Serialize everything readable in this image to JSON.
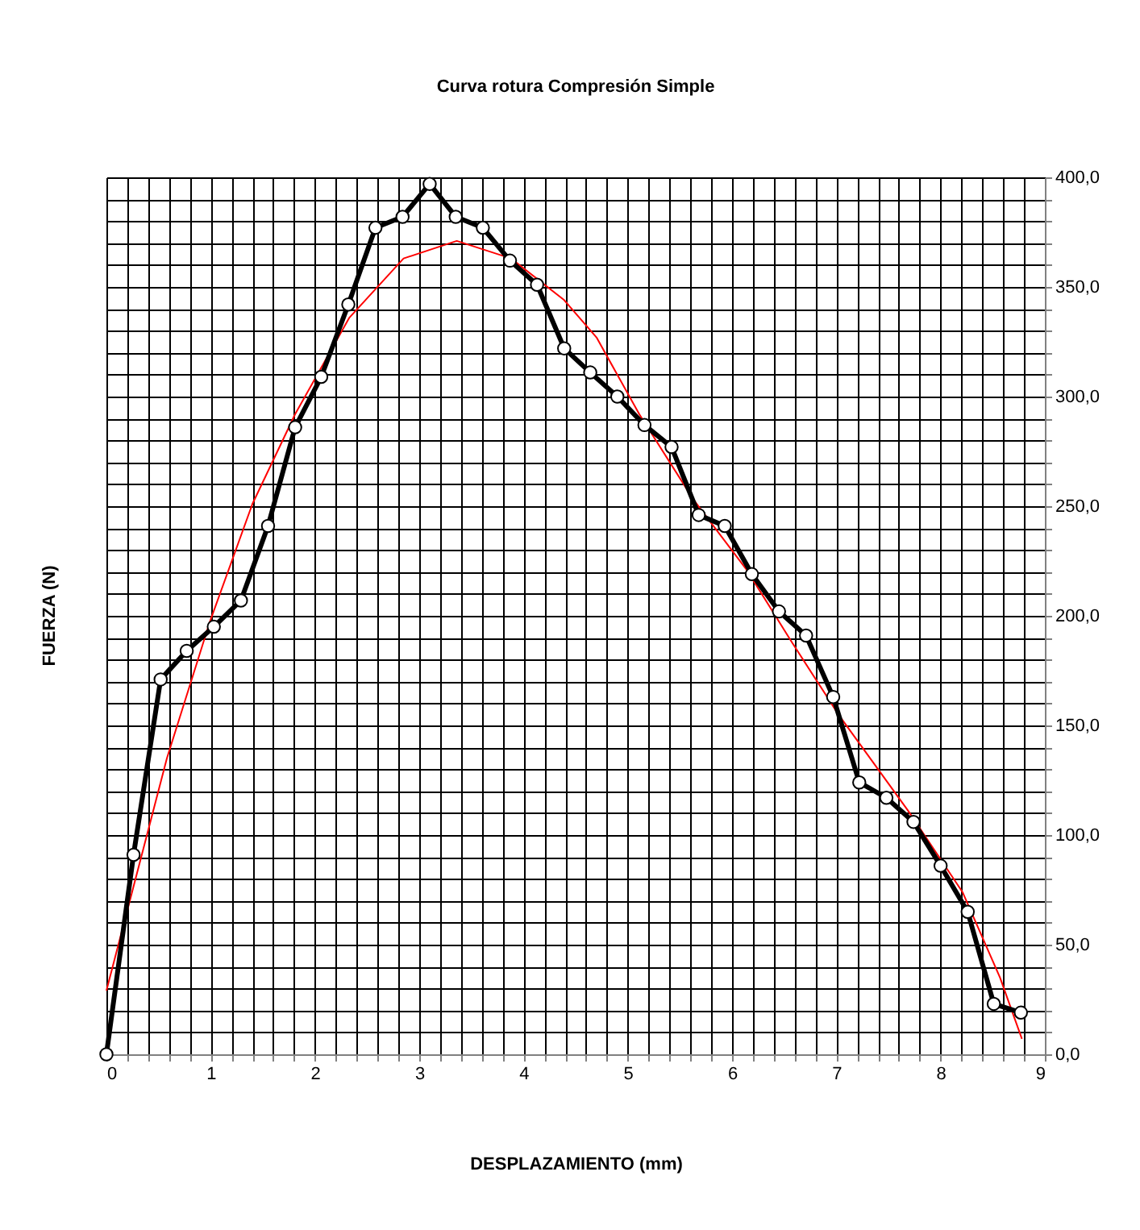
{
  "chart_data": {
    "type": "line",
    "title": "Curva rotura Compresión Simple",
    "xlabel": "DESPLAZAMIENTO (mm)",
    "ylabel": "FUERZA (N)",
    "series": [
      {
        "type": "line",
        "color": "#000000",
        "marker": "circle",
        "line_style": "solid",
        "x": [
          0,
          0.26,
          0.52,
          0.77,
          1.03,
          1.29,
          1.55,
          1.81,
          2.06,
          2.32,
          2.58,
          2.84,
          3.1,
          3.35,
          3.61,
          3.87,
          4.13,
          4.39,
          4.64,
          4.9,
          5.16,
          5.42,
          5.68,
          5.93,
          6.19,
          6.45,
          6.71,
          6.97,
          7.22,
          7.48,
          7.74,
          8.0,
          8.26,
          8.51,
          8.77
        ],
        "values": [
          0,
          91,
          171,
          184,
          195,
          207,
          241,
          286,
          309,
          342,
          377,
          382,
          397,
          382,
          377,
          362,
          351,
          322,
          311,
          300,
          287,
          277,
          246,
          241,
          219,
          202,
          191,
          163,
          124,
          117,
          106,
          86,
          65,
          23,
          19
        ]
      },
      {
        "type": "line",
        "color": "#ff0000",
        "marker": "none",
        "line_style": "solid",
        "x": [
          0,
          0.58,
          0.99,
          1.4,
          1.81,
          2.33,
          2.85,
          3.36,
          3.88,
          4.39,
          4.7,
          5.11,
          5.63,
          6.14,
          6.56,
          7.02,
          7.69,
          8.21,
          8.57,
          8.78
        ],
        "values": [
          29,
          135,
          197,
          251,
          292,
          336,
          363,
          371,
          363,
          344,
          327,
          292,
          253,
          221,
          189,
          155,
          111,
          74,
          35,
          7
        ]
      }
    ],
    "xlim": [
      0,
      9
    ],
    "ylim": [
      0,
      400
    ],
    "xticks": [
      0,
      {
        "value": 0.2,
        "label": null
      },
      {
        "value": 0.4,
        "label": null
      },
      {
        "value": 0.6,
        "label": null
      },
      {
        "value": 0.8,
        "label": null
      },
      1,
      {
        "value": 1.2,
        "label": null
      },
      {
        "value": 1.4,
        "label": null
      },
      {
        "value": 1.6,
        "label": null
      },
      {
        "value": 1.8,
        "label": null
      },
      2,
      {
        "value": 2.2,
        "label": null
      },
      {
        "value": 2.4,
        "label": null
      },
      {
        "value": 2.6,
        "label": null
      },
      {
        "value": 2.8,
        "label": null
      },
      3,
      {
        "value": 3.2,
        "label": null
      },
      {
        "value": 3.4,
        "label": null
      },
      {
        "value": 3.6,
        "label": null
      },
      {
        "value": 3.8,
        "label": null
      },
      4,
      {
        "value": 4.2,
        "label": null
      },
      {
        "value": 4.4,
        "label": null
      },
      {
        "value": 4.6,
        "label": null
      },
      {
        "value": 4.8,
        "label": null
      },
      5,
      {
        "value": 5.2,
        "label": null
      },
      {
        "value": 5.4,
        "label": null
      },
      {
        "value": 5.6,
        "label": null
      },
      {
        "value": 5.8,
        "label": null
      },
      6,
      {
        "value": 6.2,
        "label": null
      },
      {
        "value": 6.4,
        "label": null
      },
      {
        "value": 6.6,
        "label": null
      },
      {
        "value": 6.8,
        "label": null
      },
      7,
      {
        "value": 7.2,
        "label": null
      },
      {
        "value": 7.4,
        "label": null
      },
      {
        "value": 7.6,
        "label": null
      },
      {
        "value": 7.8,
        "label": null
      },
      8,
      {
        "value": 8.2,
        "label": null
      },
      {
        "value": 8.4,
        "label": null
      },
      {
        "value": 8.6,
        "label": null
      },
      {
        "value": 8.8,
        "label": null
      },
      9
    ],
    "yticks": [
      {
        "value": 0,
        "label": "0,0"
      },
      {
        "value": 10,
        "label": null
      },
      {
        "value": 20,
        "label": null
      },
      {
        "value": 30,
        "label": null
      },
      {
        "value": 40,
        "label": null
      },
      {
        "value": 50,
        "label": "50,0"
      },
      {
        "value": 60,
        "label": null
      },
      {
        "value": 70,
        "label": null
      },
      {
        "value": 80,
        "label": null
      },
      {
        "value": 90,
        "label": null
      },
      {
        "value": 100,
        "label": "100,0"
      },
      {
        "value": 110,
        "label": null
      },
      {
        "value": 120,
        "label": null
      },
      {
        "value": 130,
        "label": null
      },
      {
        "value": 140,
        "label": null
      },
      {
        "value": 150,
        "label": "150,0"
      },
      {
        "value": 160,
        "label": null
      },
      {
        "value": 170,
        "label": null
      },
      {
        "value": 180,
        "label": null
      },
      {
        "value": 190,
        "label": null
      },
      {
        "value": 200,
        "label": "200,0"
      },
      {
        "value": 210,
        "label": null
      },
      {
        "value": 220,
        "label": null
      },
      {
        "value": 230,
        "label": null
      },
      {
        "value": 240,
        "label": null
      },
      {
        "value": 250,
        "label": "250,0"
      },
      {
        "value": 260,
        "label": null
      },
      {
        "value": 270,
        "label": null
      },
      {
        "value": 280,
        "label": null
      },
      {
        "value": 290,
        "label": null
      },
      {
        "value": 300,
        "label": "300,0"
      },
      {
        "value": 310,
        "label": null
      },
      {
        "value": 320,
        "label": null
      },
      {
        "value": 330,
        "label": null
      },
      {
        "value": 340,
        "label": null
      },
      {
        "value": 350,
        "label": "350,0"
      },
      {
        "value": 360,
        "label": null
      },
      {
        "value": 370,
        "label": null
      },
      {
        "value": 380,
        "label": null
      },
      {
        "value": 390,
        "label": null
      },
      {
        "value": 400,
        "label": "400,0"
      }
    ],
    "grid": true
  }
}
